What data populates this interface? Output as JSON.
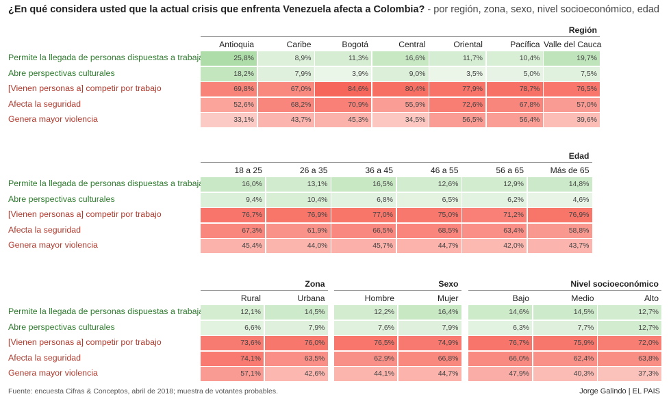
{
  "header": {
    "question": "¿En qué considera usted que la actual crisis que enfrenta Venezuela afecta a Colombia?",
    "subtitle": " - por región, zona, sexo, nivel socioeconómico, edad"
  },
  "footer": {
    "source": "Fuente: encuesta Cifras & Conceptos, abril de 2018; muestra de votantes probables.",
    "credit": "Jorge Galindo | EL PAIS"
  },
  "colors": {
    "positive_label": "#2d7a2d",
    "negative_label": "#b03a2e",
    "green_scale_max": "#a9dba3",
    "red_scale_max": "#f7655a"
  },
  "chart_data": [
    {
      "type": "table",
      "title": "Región",
      "row_labels": [
        "Permite la llegada de personas dispuestas a trabajar",
        "Abre perspectivas culturales",
        "[Vienen personas a] competir por trabajo",
        "Afecta la seguridad",
        "Genera mayor violencia"
      ],
      "row_sentiment": [
        "pos",
        "pos",
        "neg",
        "neg",
        "neg"
      ],
      "groups": [
        {
          "name": "Región",
          "columns": [
            "Antioquia",
            "Caribe",
            "Bogotá",
            "Central",
            "Oriental",
            "Pacífica",
            "Valle del Cauca"
          ],
          "values": [
            [
              25.8,
              8.9,
              11.3,
              16.6,
              11.7,
              10.4,
              19.7
            ],
            [
              18.2,
              7.9,
              3.9,
              9.0,
              3.5,
              5.0,
              7.5
            ],
            [
              69.8,
              67.0,
              84.6,
              80.4,
              77.9,
              78.7,
              76.5
            ],
            [
              52.6,
              68.2,
              70.9,
              55.9,
              72.6,
              67.8,
              57.0
            ],
            [
              33.1,
              43.7,
              45.3,
              34.5,
              56.5,
              56.4,
              39.6
            ]
          ]
        }
      ]
    },
    {
      "type": "table",
      "title": "Edad",
      "row_labels": [
        "Permite la llegada de personas dispuestas a trabajar",
        "Abre perspectivas culturales",
        "[Vienen personas a] competir por trabajo",
        "Afecta la seguridad",
        "Genera mayor violencia"
      ],
      "row_sentiment": [
        "pos",
        "pos",
        "neg",
        "neg",
        "neg"
      ],
      "groups": [
        {
          "name": "Edad",
          "columns": [
            "18 a 25",
            "26 a 35",
            "36 a 45",
            "46 a 55",
            "56 a 65",
            "Más de 65"
          ],
          "values": [
            [
              16.0,
              13.1,
              16.5,
              12.6,
              12.9,
              14.8
            ],
            [
              9.4,
              10.4,
              6.8,
              6.5,
              6.2,
              4.6
            ],
            [
              76.7,
              76.9,
              77.0,
              75.0,
              71.2,
              76.9
            ],
            [
              67.3,
              61.9,
              66.5,
              68.5,
              63.4,
              58.8
            ],
            [
              45.4,
              44.0,
              45.7,
              44.7,
              42.0,
              43.7
            ]
          ]
        }
      ]
    },
    {
      "type": "table",
      "title": "Zona / Sexo / Nivel socioeconómico",
      "row_labels": [
        "Permite la llegada de personas dispuestas a trabajar",
        "Abre perspectivas culturales",
        "[Vienen personas a] competir por trabajo",
        "Afecta la seguridad",
        "Genera mayor violencia"
      ],
      "row_sentiment": [
        "pos",
        "pos",
        "neg",
        "neg",
        "neg"
      ],
      "groups": [
        {
          "name": "Zona",
          "columns": [
            "Rural",
            "Urbana"
          ],
          "values": [
            [
              12.1,
              14.5
            ],
            [
              6.6,
              7.9
            ],
            [
              73.6,
              76.0
            ],
            [
              74.1,
              63.5
            ],
            [
              57.1,
              42.6
            ]
          ]
        },
        {
          "name": "Sexo",
          "columns": [
            "Hombre",
            "Mujer"
          ],
          "values": [
            [
              12.2,
              16.4
            ],
            [
              7.6,
              7.9
            ],
            [
              76.5,
              74.9
            ],
            [
              62.9,
              66.8
            ],
            [
              44.1,
              44.7
            ]
          ]
        },
        {
          "name": "Nivel socioeconómico",
          "columns": [
            "Bajo",
            "Medio",
            "Alto"
          ],
          "values": [
            [
              14.6,
              14.5,
              12.7
            ],
            [
              6.3,
              7.7,
              12.7
            ],
            [
              76.7,
              75.9,
              72.0
            ],
            [
              66.0,
              62.4,
              63.8
            ],
            [
              47.9,
              40.3,
              37.3
            ]
          ]
        }
      ]
    }
  ]
}
